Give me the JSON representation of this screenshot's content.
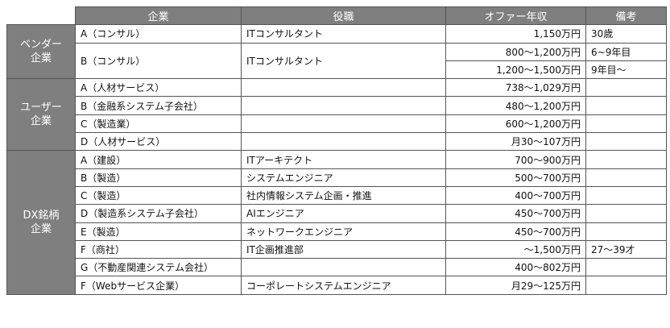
{
  "headers": [
    "",
    "企業",
    "役職",
    "オファー年収",
    "備考"
  ],
  "groups": {
    "vendor": "ベンダー\n企業",
    "user": "ユーザー\n企業",
    "dx": "DX銘柄\n企業"
  },
  "rows": [
    {
      "company": "A（コンサル）",
      "role": "ITコンサルタント",
      "salary": "1,150万円",
      "note": "30歳"
    },
    {
      "company": "B（コンサル）",
      "role": "ITコンサルタント",
      "salary": "800～1,200万円",
      "note": "6~9年目"
    },
    {
      "company": "",
      "role": "",
      "salary": "1,200～1,500万円",
      "note": "9年目～"
    },
    {
      "company": "A（人材サービス）",
      "role": "",
      "salary": "738～1,029万円",
      "note": ""
    },
    {
      "company": "B（金融系システム子会社）",
      "role": "",
      "salary": "480～1,200万円",
      "note": ""
    },
    {
      "company": "C（製造業）",
      "role": "",
      "salary": "600～1,200万円",
      "note": ""
    },
    {
      "company": "D（人材サービス）",
      "role": "",
      "salary": "月30～107万円",
      "note": ""
    },
    {
      "company": "A（建設）",
      "role": "ITアーキテクト",
      "salary": "700～900万円",
      "note": ""
    },
    {
      "company": "B（製造）",
      "role": "システムエンジニア",
      "salary": "500～700万円",
      "note": ""
    },
    {
      "company": "C（製造）",
      "role": "社内情報システム企画・推進",
      "salary": "400～700万円",
      "note": ""
    },
    {
      "company": "D（製造系システム子会社）",
      "role": "AIエンジニア",
      "salary": "450～700万円",
      "note": ""
    },
    {
      "company": "E（製造）",
      "role": "ネットワークエンジニア",
      "salary": "450～700万円",
      "note": ""
    },
    {
      "company": "F（商社）",
      "role": "IT企画推進部",
      "salary": "～1,500万円",
      "note": "27～39才"
    },
    {
      "company": "G（不動産関連システム会社）",
      "role": "",
      "salary": "400～802万円",
      "note": ""
    },
    {
      "company": "F（Webサービス企業）",
      "role": "コーポレートシステムエンジニア",
      "salary": "月29～125万円",
      "note": ""
    }
  ]
}
